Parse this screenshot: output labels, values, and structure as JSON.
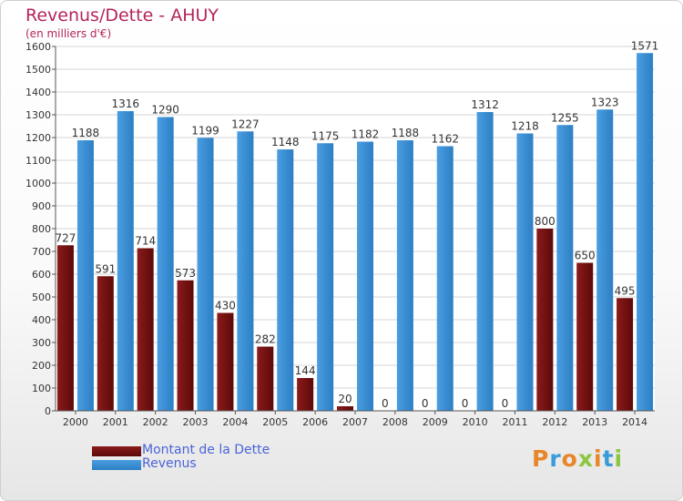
{
  "title": "Revenus/Dette - AHUY",
  "subtitle": "(en milliers d'€)",
  "logo_text": "Proxiti",
  "colors": {
    "title": "#b4245c",
    "dette": "#8b1a1a",
    "dette_dark": "#5c0a0a",
    "revenus": "#4a9de0",
    "revenus_dark": "#2c7fc4",
    "legend_text": "#4a64d8"
  },
  "chart_data": {
    "type": "bar",
    "title": "Revenus/Dette - AHUY",
    "subtitle": "(en milliers d'€)",
    "categories": [
      "2000",
      "2001",
      "2002",
      "2003",
      "2004",
      "2005",
      "2006",
      "2007",
      "2008",
      "2009",
      "2010",
      "2011",
      "2012",
      "2013",
      "2014"
    ],
    "series": [
      {
        "name": "Montant de la Dette",
        "values": [
          727,
          591,
          714,
          573,
          430,
          282,
          144,
          20,
          0,
          0,
          0,
          0,
          800,
          650,
          495
        ]
      },
      {
        "name": "Revenus",
        "values": [
          1188,
          1316,
          1290,
          1199,
          1227,
          1148,
          1175,
          1182,
          1188,
          1162,
          1312,
          1218,
          1255,
          1323,
          1571
        ]
      }
    ],
    "ylim": [
      0,
      1600
    ],
    "yticks": [
      0,
      100,
      200,
      300,
      400,
      500,
      600,
      700,
      800,
      900,
      1000,
      1100,
      1200,
      1300,
      1400,
      1500,
      1600
    ],
    "grid": true,
    "legend": "bottom-left"
  }
}
